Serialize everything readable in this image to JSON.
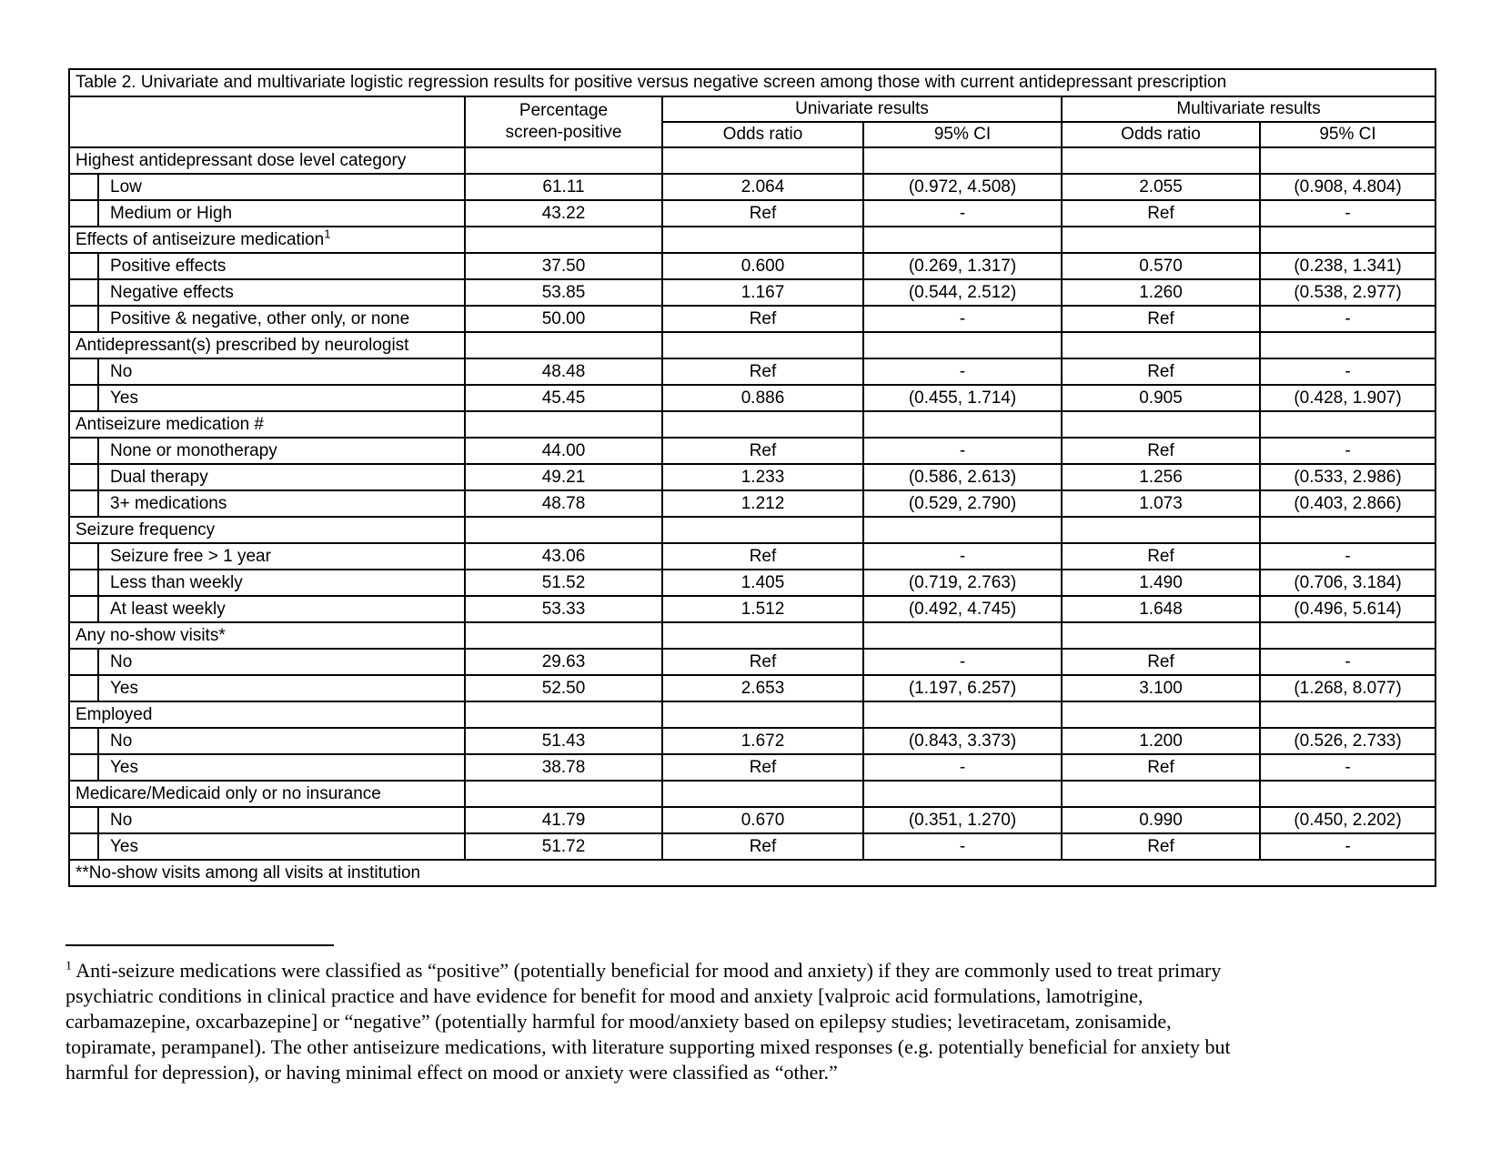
{
  "table": {
    "title": "Table 2. Univariate and multivariate logistic regression results for positive versus negative screen among those with current antidepressant prescription",
    "headers": {
      "percentage_line1": "Percentage",
      "percentage_line2": "screen-positive",
      "univariate_group": "Univariate results",
      "multivariate_group": "Multivariate results",
      "odds_ratio": "Odds ratio",
      "ci": "95% CI"
    },
    "rows": [
      {
        "type": "section",
        "label": "Highest antidepressant dose level category",
        "sup": ""
      },
      {
        "type": "data",
        "label": "Low",
        "pct": "61.11",
        "u_or": "2.064",
        "u_ci": "(0.972, 4.508)",
        "m_or": "2.055",
        "m_ci": "(0.908, 4.804)"
      },
      {
        "type": "data",
        "label": "Medium or High",
        "pct": "43.22",
        "u_or": "Ref",
        "u_ci": "-",
        "m_or": "Ref",
        "m_ci": "-"
      },
      {
        "type": "section",
        "label": "Effects of antiseizure medication",
        "sup": "1"
      },
      {
        "type": "data",
        "label": "Positive effects",
        "pct": "37.50",
        "u_or": "0.600",
        "u_ci": "(0.269, 1.317)",
        "m_or": "0.570",
        "m_ci": "(0.238, 1.341)"
      },
      {
        "type": "data",
        "label": "Negative effects",
        "pct": "53.85",
        "u_or": "1.167",
        "u_ci": "(0.544, 2.512)",
        "m_or": "1.260",
        "m_ci": "(0.538, 2.977)"
      },
      {
        "type": "data",
        "label": "Positive & negative, other only, or none",
        "pct": "50.00",
        "u_or": "Ref",
        "u_ci": "-",
        "m_or": "Ref",
        "m_ci": "-"
      },
      {
        "type": "section",
        "label": "Antidepressant(s) prescribed by neurologist",
        "sup": ""
      },
      {
        "type": "data",
        "label": "No",
        "pct": "48.48",
        "u_or": "Ref",
        "u_ci": "-",
        "m_or": "Ref",
        "m_ci": "-"
      },
      {
        "type": "data",
        "label": "Yes",
        "pct": "45.45",
        "u_or": "0.886",
        "u_ci": "(0.455, 1.714)",
        "m_or": "0.905",
        "m_ci": "(0.428, 1.907)"
      },
      {
        "type": "section",
        "label": "Antiseizure medication #",
        "sup": ""
      },
      {
        "type": "data",
        "label": "None or monotherapy",
        "pct": "44.00",
        "u_or": "Ref",
        "u_ci": "-",
        "m_or": "Ref",
        "m_ci": "-"
      },
      {
        "type": "data",
        "label": "Dual therapy",
        "pct": "49.21",
        "u_or": "1.233",
        "u_ci": "(0.586, 2.613)",
        "m_or": "1.256",
        "m_ci": "(0.533, 2.986)"
      },
      {
        "type": "data",
        "label": "3+ medications",
        "pct": "48.78",
        "u_or": "1.212",
        "u_ci": "(0.529, 2.790)",
        "m_or": "1.073",
        "m_ci": "(0.403, 2.866)"
      },
      {
        "type": "section",
        "label": "Seizure frequency",
        "sup": ""
      },
      {
        "type": "data",
        "label": "Seizure free > 1 year",
        "pct": "43.06",
        "u_or": "Ref",
        "u_ci": "-",
        "m_or": "Ref",
        "m_ci": "-"
      },
      {
        "type": "data",
        "label": "Less than weekly",
        "pct": "51.52",
        "u_or": "1.405",
        "u_ci": "(0.719, 2.763)",
        "m_or": "1.490",
        "m_ci": "(0.706, 3.184)"
      },
      {
        "type": "data",
        "label": "At least weekly",
        "pct": "53.33",
        "u_or": "1.512",
        "u_ci": "(0.492, 4.745)",
        "m_or": "1.648",
        "m_ci": "(0.496, 5.614)"
      },
      {
        "type": "section",
        "label": "Any no-show visits*",
        "sup": ""
      },
      {
        "type": "data",
        "label": "No",
        "pct": "29.63",
        "u_or": "Ref",
        "u_ci": "-",
        "m_or": "Ref",
        "m_ci": "-"
      },
      {
        "type": "data",
        "label": "Yes",
        "pct": "52.50",
        "u_or": "2.653",
        "u_ci": "(1.197, 6.257)",
        "m_or": "3.100",
        "m_ci": "(1.268, 8.077)"
      },
      {
        "type": "section",
        "label": "Employed",
        "sup": ""
      },
      {
        "type": "data",
        "label": "No",
        "pct": "51.43",
        "u_or": "1.672",
        "u_ci": "(0.843, 3.373)",
        "m_or": "1.200",
        "m_ci": "(0.526, 2.733)"
      },
      {
        "type": "data",
        "label": "Yes",
        "pct": "38.78",
        "u_or": "Ref",
        "u_ci": "-",
        "m_or": "Ref",
        "m_ci": "-"
      },
      {
        "type": "section",
        "label": "Medicare/Medicaid only or no insurance",
        "sup": ""
      },
      {
        "type": "data",
        "label": "No",
        "pct": "41.79",
        "u_or": "0.670",
        "u_ci": "(0.351, 1.270)",
        "m_or": "0.990",
        "m_ci": "(0.450, 2.202)"
      },
      {
        "type": "data",
        "label": "Yes",
        "pct": "51.72",
        "u_or": "Ref",
        "u_ci": "-",
        "m_or": "Ref",
        "m_ci": "-"
      }
    ],
    "footer": "**No-show visits among all visits at institution"
  },
  "footnote": {
    "marker": "1",
    "lines": [
      " Anti-seizure medications were classified as “positive” (potentially beneficial for mood and anxiety) if they are commonly used to treat primary",
      "psychiatric conditions in clinical practice and have evidence for benefit for mood and anxiety [valproic acid formulations, lamotrigine,",
      "carbamazepine, oxcarbazepine] or “negative” (potentially harmful for mood/anxiety based on epilepsy studies; levetiracetam, zonisamide,",
      "topiramate, perampanel). The other antiseizure medications, with literature supporting mixed responses (e.g. potentially beneficial for anxiety but",
      "harmful for depression), or having minimal effect on mood or anxiety were classified as “other.”"
    ]
  }
}
